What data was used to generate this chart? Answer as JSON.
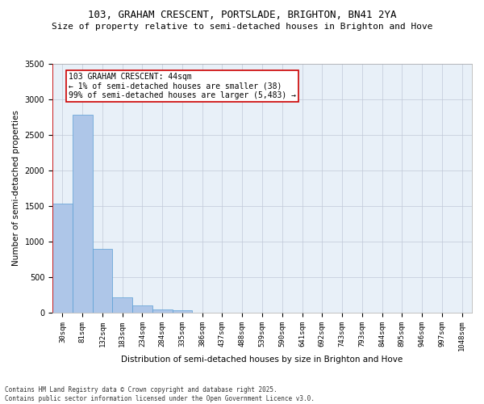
{
  "title1": "103, GRAHAM CRESCENT, PORTSLADE, BRIGHTON, BN41 2YA",
  "title2": "Size of property relative to semi-detached houses in Brighton and Hove",
  "xlabel": "Distribution of semi-detached houses by size in Brighton and Hove",
  "ylabel": "Number of semi-detached properties",
  "bin_labels": [
    "30sqm",
    "81sqm",
    "132sqm",
    "183sqm",
    "234sqm",
    "284sqm",
    "335sqm",
    "386sqm",
    "437sqm",
    "488sqm",
    "539sqm",
    "590sqm",
    "641sqm",
    "692sqm",
    "743sqm",
    "793sqm",
    "844sqm",
    "895sqm",
    "946sqm",
    "997sqm",
    "1048sqm"
  ],
  "bar_values": [
    1540,
    2780,
    900,
    220,
    100,
    45,
    30,
    5,
    2,
    1,
    0,
    0,
    0,
    0,
    0,
    0,
    0,
    0,
    0,
    0,
    0
  ],
  "bar_color": "#aec6e8",
  "bar_edge_color": "#5a9fd4",
  "highlight_color": "#cc0000",
  "annotation_text": "103 GRAHAM CRESCENT: 44sqm\n← 1% of semi-detached houses are smaller (38)\n99% of semi-detached houses are larger (5,483) →",
  "annotation_box_color": "#ffffff",
  "annotation_box_edge": "#cc0000",
  "ylim": [
    0,
    3500
  ],
  "yticks": [
    0,
    500,
    1000,
    1500,
    2000,
    2500,
    3000,
    3500
  ],
  "bg_color": "#e8f0f8",
  "footer_text": "Contains HM Land Registry data © Crown copyright and database right 2025.\nContains public sector information licensed under the Open Government Licence v3.0.",
  "title1_fontsize": 9,
  "title2_fontsize": 8,
  "xlabel_fontsize": 7.5,
  "ylabel_fontsize": 7.5,
  "annotation_fontsize": 7,
  "footer_fontsize": 5.5,
  "tick_fontsize": 6.5,
  "ytick_fontsize": 7
}
